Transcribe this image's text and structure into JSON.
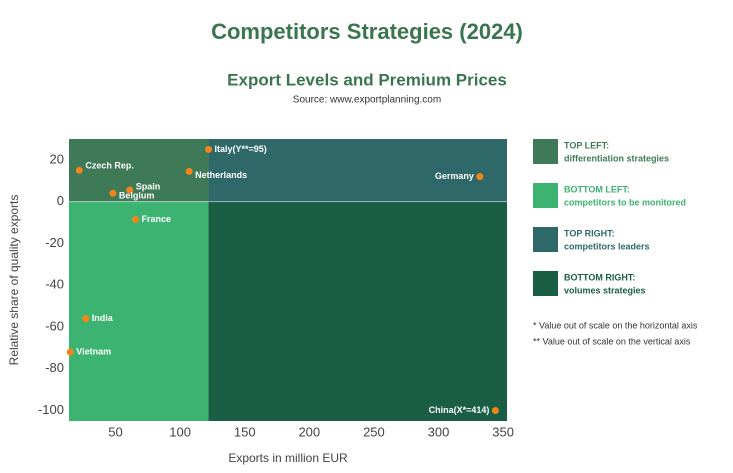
{
  "chart_data": {
    "type": "scatter",
    "title": "Competitors Strategies (2024)",
    "subtitle": "Export Levels and Premium Prices",
    "source": "Source: www.exportplanning.com",
    "x_label": "Exports in million EUR",
    "y_label": "Relative share of quality exports",
    "xlim": [
      14,
      353
    ],
    "ylim": [
      -105,
      30
    ],
    "xticks": [
      50,
      100,
      150,
      200,
      250,
      300,
      350
    ],
    "yticks": [
      -100,
      -80,
      -60,
      -40,
      -20,
      0,
      20
    ],
    "quadrant_split": {
      "x": 122,
      "y": 0
    },
    "marker_color": "#f58518",
    "series": [
      {
        "names": [
          "Czech Rep.",
          "Italy(Y**=95)",
          "Netherlands",
          "Spain",
          "Belgium",
          "France",
          "Germany",
          "India",
          "Vietnam",
          "China(X*=414)"
        ],
        "x": [
          22,
          122,
          107,
          61,
          48,
          65.5,
          332,
          27,
          15,
          344
        ],
        "values": [
          15,
          25,
          14.5,
          5.5,
          4,
          -8.5,
          12,
          -56,
          -72,
          -100
        ]
      }
    ],
    "quadrants": [
      {
        "name": "TOP LEFT:",
        "description": "differentiation strategies",
        "color": "#3f7a58"
      },
      {
        "name": "BOTTOM LEFT:",
        "description": "competitors to be monitored",
        "color": "#3cb371"
      },
      {
        "name": "TOP RIGHT:",
        "description": "competitors leaders",
        "color": "#2f6868"
      },
      {
        "name": "BOTTOM RIGHT:",
        "description": "volumes strategies",
        "color": "#1a5e45"
      }
    ],
    "notes": [
      "* Value out of scale on the horizontal axis",
      "** Value out of scale on the vertical axis"
    ]
  }
}
